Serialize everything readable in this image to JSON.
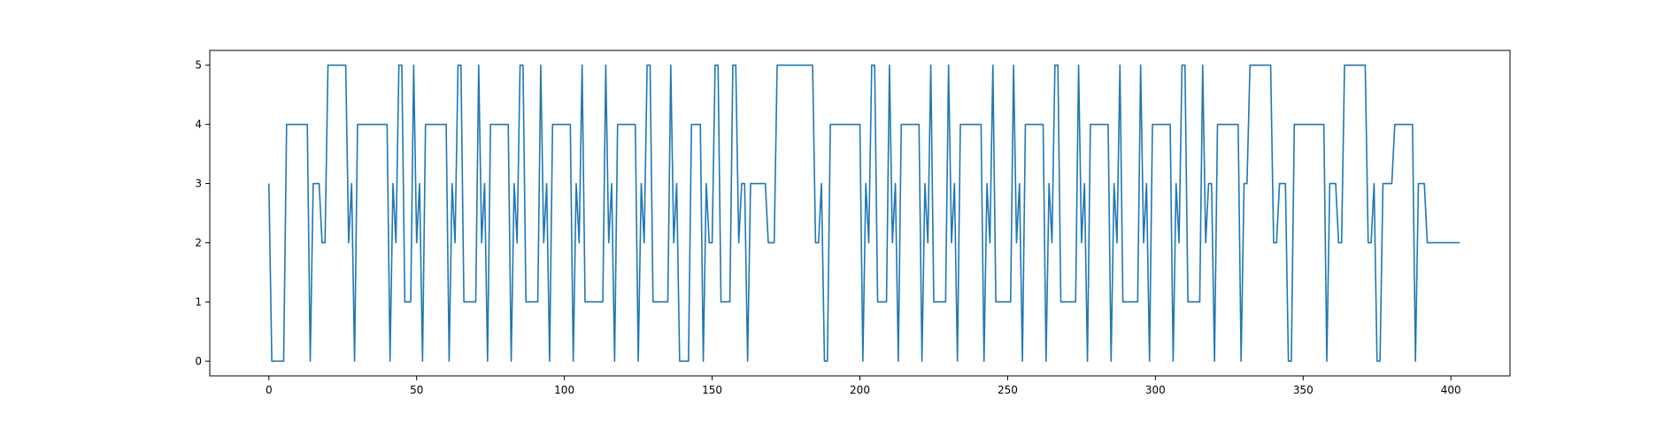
{
  "colors": {
    "line": "#1f77b4",
    "axes": "#000000",
    "background": "#ffffff"
  },
  "chart_data": {
    "type": "line",
    "title": "",
    "xlabel": "",
    "ylabel": "",
    "grid": false,
    "legend": "none",
    "xlim": [
      -20,
      420
    ],
    "ylim": [
      -0.25,
      5.25
    ],
    "xticks": [
      0,
      50,
      100,
      150,
      200,
      250,
      300,
      350,
      400
    ],
    "yticks": [
      0,
      1,
      2,
      3,
      4,
      5
    ],
    "series": [
      {
        "name": "",
        "x_start": 0,
        "x_step": 1,
        "y": [
          3,
          0,
          0,
          0,
          0,
          0,
          4,
          4,
          4,
          4,
          4,
          4,
          4,
          4,
          0,
          3,
          3,
          3,
          2,
          2,
          5,
          5,
          5,
          5,
          5,
          5,
          5,
          2,
          3,
          0,
          4,
          4,
          4,
          4,
          4,
          4,
          4,
          4,
          4,
          4,
          4,
          0,
          3,
          2,
          5,
          5,
          1,
          1,
          1,
          5,
          2,
          3,
          0,
          4,
          4,
          4,
          4,
          4,
          4,
          4,
          4,
          0,
          3,
          2,
          5,
          5,
          1,
          1,
          1,
          1,
          1,
          5,
          2,
          3,
          0,
          4,
          4,
          4,
          4,
          4,
          4,
          4,
          0,
          3,
          2,
          5,
          5,
          1,
          1,
          1,
          1,
          1,
          5,
          2,
          3,
          0,
          4,
          4,
          4,
          4,
          4,
          4,
          4,
          0,
          3,
          2,
          5,
          1,
          1,
          1,
          1,
          1,
          1,
          1,
          5,
          2,
          3,
          0,
          4,
          4,
          4,
          4,
          4,
          4,
          4,
          0,
          3,
          2,
          5,
          5,
          1,
          1,
          1,
          1,
          1,
          1,
          5,
          2,
          3,
          0,
          0,
          0,
          0,
          4,
          4,
          4,
          4,
          0,
          3,
          2,
          2,
          5,
          5,
          1,
          1,
          1,
          1,
          5,
          5,
          2,
          3,
          3,
          0,
          3,
          3,
          3,
          3,
          3,
          3,
          2,
          2,
          2,
          5,
          5,
          5,
          5,
          5,
          5,
          5,
          5,
          5,
          5,
          5,
          5,
          5,
          2,
          2,
          3,
          0,
          0,
          4,
          4,
          4,
          4,
          4,
          4,
          4,
          4,
          4,
          4,
          4,
          0,
          3,
          2,
          5,
          5,
          1,
          1,
          1,
          1,
          5,
          2,
          3,
          0,
          4,
          4,
          4,
          4,
          4,
          4,
          4,
          0,
          3,
          2,
          5,
          1,
          1,
          1,
          1,
          1,
          5,
          2,
          3,
          0,
          4,
          4,
          4,
          4,
          4,
          4,
          4,
          4,
          0,
          3,
          2,
          5,
          1,
          1,
          1,
          1,
          1,
          1,
          5,
          2,
          3,
          0,
          4,
          4,
          4,
          4,
          4,
          4,
          4,
          0,
          3,
          2,
          5,
          5,
          1,
          1,
          1,
          1,
          1,
          1,
          5,
          2,
          3,
          0,
          4,
          4,
          4,
          4,
          4,
          4,
          4,
          0,
          3,
          2,
          5,
          1,
          1,
          1,
          1,
          1,
          1,
          5,
          2,
          3,
          0,
          4,
          4,
          4,
          4,
          4,
          4,
          4,
          0,
          3,
          2,
          5,
          5,
          1,
          1,
          1,
          1,
          1,
          5,
          2,
          3,
          3,
          0,
          4,
          4,
          4,
          4,
          4,
          4,
          4,
          4,
          0,
          3,
          3,
          5,
          5,
          5,
          5,
          5,
          5,
          5,
          5,
          2,
          2,
          3,
          3,
          3,
          0,
          0,
          4,
          4,
          4,
          4,
          4,
          4,
          4,
          4,
          4,
          4,
          4,
          0,
          3,
          3,
          3,
          2,
          2,
          5,
          5,
          5,
          5,
          5,
          5,
          5,
          5,
          2,
          2,
          3,
          0,
          0,
          3,
          3,
          3,
          3,
          4,
          4,
          4,
          4,
          4,
          4,
          4,
          0,
          3,
          3,
          3,
          2,
          2,
          2,
          2,
          2,
          2,
          2,
          2,
          2,
          2,
          2,
          2
        ]
      }
    ]
  }
}
